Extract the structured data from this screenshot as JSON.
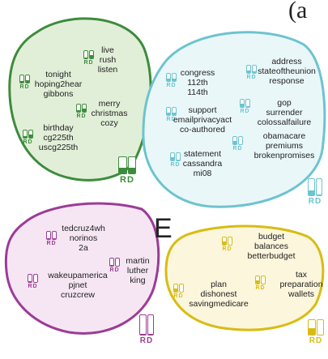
{
  "panel_label": "(a",
  "e_label": "E",
  "colors": {
    "green": "#3c8c3c",
    "cyan": "#6cc4cf",
    "purple": "#9c3c96",
    "yellow": "#d8bc14"
  },
  "clusters": [
    {
      "name": "green-cluster",
      "color": "#3c8c3c",
      "fill": "#e2efd8",
      "terms": [
        {
          "lines": [
            "live",
            "rush",
            "listen"
          ],
          "r": 0.15,
          "d": 0.45
        },
        {
          "lines": [
            "tonight",
            "hoping2hear",
            "gibbons"
          ],
          "r": 0.25,
          "d": 0.35
        },
        {
          "lines": [
            "merry",
            "christmas",
            "cozy"
          ],
          "r": 0.2,
          "d": 0.4
        },
        {
          "lines": [
            "birthday",
            "cg225th",
            "uscg225th"
          ],
          "r": 0.25,
          "d": 0.4
        }
      ],
      "summary": {
        "label": "RD",
        "r": 0.35,
        "d": 0.35
      }
    },
    {
      "name": "cyan-cluster",
      "color": "#6cc4cf",
      "fill": "#eaf7f9",
      "terms": [
        {
          "lines": [
            "congress",
            "112th",
            "114th"
          ],
          "r": 0.3,
          "d": 0.3
        },
        {
          "lines": [
            "address",
            "stateoftheunion",
            "response"
          ],
          "r": 0.3,
          "d": 0.2
        },
        {
          "lines": [
            "support",
            "emailprivacyact",
            "co-authored"
          ],
          "r": 0.3,
          "d": 0.3
        },
        {
          "lines": [
            "gop",
            "surrender",
            "colossalfailure"
          ],
          "r": 0.5,
          "d": 0.1
        },
        {
          "lines": [
            "obamacare",
            "premiums",
            "brokenpromises"
          ],
          "r": 0.5,
          "d": 0.05
        },
        {
          "lines": [
            "statement",
            "cassandra",
            "mi08"
          ],
          "r": 0.45,
          "d": 0.1
        }
      ],
      "summary": {
        "label": "RD",
        "r": 0.3,
        "d": 0.05
      }
    },
    {
      "name": "purple-cluster",
      "color": "#9c3c96",
      "fill": "#f6e6f4",
      "terms": [
        {
          "lines": [
            "tedcruz4wh",
            "norinos",
            "2a"
          ],
          "r": 0.1,
          "d": 0.1
        },
        {
          "lines": [
            "martin",
            "luther",
            "king"
          ],
          "r": 0.1,
          "d": 0.05
        },
        {
          "lines": [
            "wakeupamerica",
            "pjnet",
            "cruzcrew"
          ],
          "r": 0.1,
          "d": 0.05
        }
      ],
      "summary": {
        "label": "RD",
        "r": 0.05,
        "d": 0.05
      }
    },
    {
      "name": "yellow-cluster",
      "color": "#d8bc14",
      "fill": "#fbf6dc",
      "terms": [
        {
          "lines": [
            "budget",
            "balances",
            "betterbudget"
          ],
          "r": 0.4,
          "d": 0.0
        },
        {
          "lines": [
            "plan",
            "dishonest",
            "savingmedicare"
          ],
          "r": 0.45,
          "d": 0.0
        },
        {
          "lines": [
            "tax",
            "preparation",
            "wallets"
          ],
          "r": 0.45,
          "d": 0.0
        }
      ],
      "summary": {
        "label": "RD",
        "r": 0.45,
        "d": 0.0
      }
    }
  ]
}
